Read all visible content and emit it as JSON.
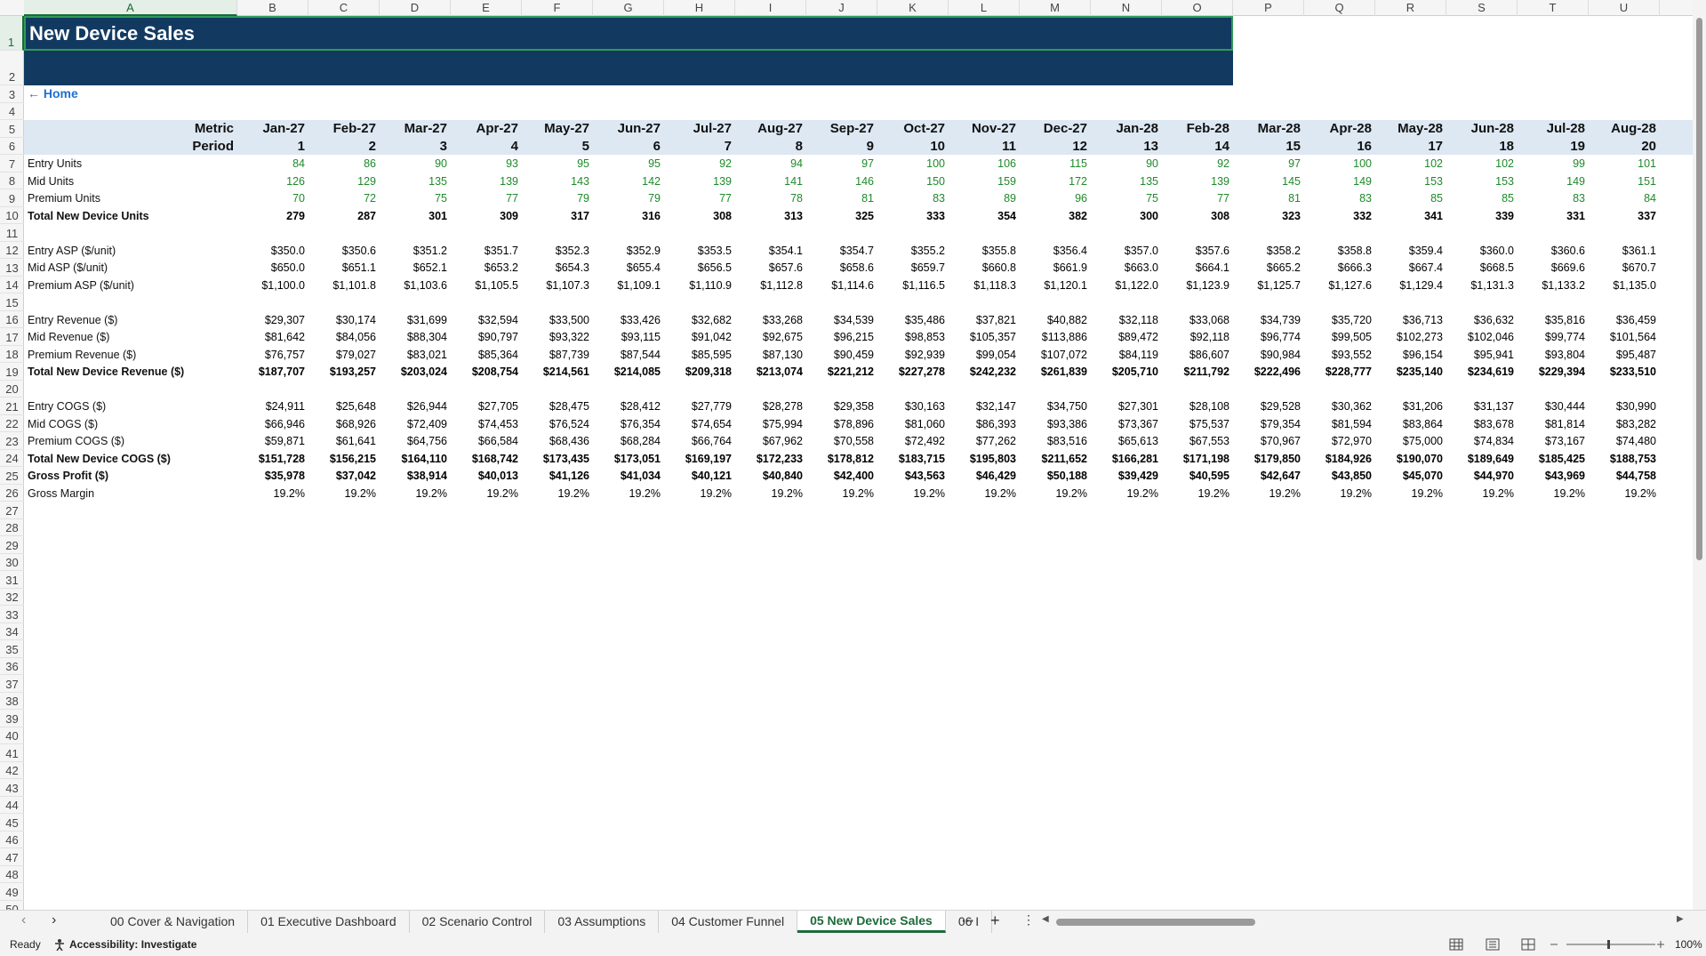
{
  "column_letters": [
    "A",
    "B",
    "C",
    "D",
    "E",
    "F",
    "G",
    "H",
    "I",
    "J",
    "K",
    "L",
    "M",
    "N",
    "O",
    "P",
    "Q",
    "R",
    "S",
    "T",
    "U"
  ],
  "row_numbers": [
    1,
    2,
    3,
    4,
    5,
    6,
    7,
    8,
    9,
    10,
    11,
    12,
    13,
    14,
    15,
    16,
    17,
    18,
    19,
    20,
    21,
    22,
    23,
    24,
    25,
    26,
    27,
    28,
    29,
    30,
    31,
    32,
    33,
    34,
    35,
    36,
    37,
    38,
    39,
    40,
    41,
    42,
    43,
    44,
    45,
    46,
    47,
    48,
    49,
    50
  ],
  "title": "New Device Sales",
  "title_fill": "#123a61",
  "home_link": "← Home",
  "header": {
    "metric_label": "Metric",
    "period_label": "Period",
    "months": [
      "Jan-27",
      "Feb-27",
      "Mar-27",
      "Apr-27",
      "May-27",
      "Jun-27",
      "Jul-27",
      "Aug-27",
      "Sep-27",
      "Oct-27",
      "Nov-27",
      "Dec-27",
      "Jan-28",
      "Feb-28",
      "Mar-28",
      "Apr-28",
      "May-28",
      "Jun-28",
      "Jul-28",
      "Aug-28"
    ],
    "periods": [
      1,
      2,
      3,
      4,
      5,
      6,
      7,
      8,
      9,
      10,
      11,
      12,
      13,
      14,
      15,
      16,
      17,
      18,
      19,
      20
    ],
    "fill": "#dde8f3"
  },
  "rows": [
    {
      "label": "Entry Units",
      "bold": false,
      "color": "#1e8a2a",
      "values": [
        "84",
        "86",
        "90",
        "93",
        "95",
        "95",
        "92",
        "94",
        "97",
        "100",
        "106",
        "115",
        "90",
        "92",
        "97",
        "100",
        "102",
        "102",
        "99",
        "101"
      ]
    },
    {
      "label": "Mid Units",
      "bold": false,
      "color": "#1e8a2a",
      "values": [
        "126",
        "129",
        "135",
        "139",
        "143",
        "142",
        "139",
        "141",
        "146",
        "150",
        "159",
        "172",
        "135",
        "139",
        "145",
        "149",
        "153",
        "153",
        "149",
        "151"
      ]
    },
    {
      "label": "Premium Units",
      "bold": false,
      "color": "#1e8a2a",
      "values": [
        "70",
        "72",
        "75",
        "77",
        "79",
        "79",
        "77",
        "78",
        "81",
        "83",
        "89",
        "96",
        "75",
        "77",
        "81",
        "83",
        "85",
        "85",
        "83",
        "84"
      ]
    },
    {
      "label": "Total New Device Units",
      "bold": true,
      "color": "#000000",
      "values": [
        "279",
        "287",
        "301",
        "309",
        "317",
        "316",
        "308",
        "313",
        "325",
        "333",
        "354",
        "382",
        "300",
        "308",
        "323",
        "332",
        "341",
        "339",
        "331",
        "337"
      ]
    },
    {
      "label": "Entry ASP ($/unit)",
      "bold": false,
      "color": "#000000",
      "values": [
        "$350.0",
        "$350.6",
        "$351.2",
        "$351.7",
        "$352.3",
        "$352.9",
        "$353.5",
        "$354.1",
        "$354.7",
        "$355.2",
        "$355.8",
        "$356.4",
        "$357.0",
        "$357.6",
        "$358.2",
        "$358.8",
        "$359.4",
        "$360.0",
        "$360.6",
        "$361.1"
      ]
    },
    {
      "label": "Mid ASP ($/unit)",
      "bold": false,
      "color": "#000000",
      "values": [
        "$650.0",
        "$651.1",
        "$652.1",
        "$653.2",
        "$654.3",
        "$655.4",
        "$656.5",
        "$657.6",
        "$658.6",
        "$659.7",
        "$660.8",
        "$661.9",
        "$663.0",
        "$664.1",
        "$665.2",
        "$666.3",
        "$667.4",
        "$668.5",
        "$669.6",
        "$670.7"
      ]
    },
    {
      "label": "Premium ASP ($/unit)",
      "bold": false,
      "color": "#000000",
      "values": [
        "$1,100.0",
        "$1,101.8",
        "$1,103.6",
        "$1,105.5",
        "$1,107.3",
        "$1,109.1",
        "$1,110.9",
        "$1,112.8",
        "$1,114.6",
        "$1,116.5",
        "$1,118.3",
        "$1,120.1",
        "$1,122.0",
        "$1,123.9",
        "$1,125.7",
        "$1,127.6",
        "$1,129.4",
        "$1,131.3",
        "$1,133.2",
        "$1,135.0"
      ]
    },
    {
      "label": "Entry Revenue ($)",
      "bold": false,
      "color": "#000000",
      "values": [
        "$29,307",
        "$30,174",
        "$31,699",
        "$32,594",
        "$33,500",
        "$33,426",
        "$32,682",
        "$33,268",
        "$34,539",
        "$35,486",
        "$37,821",
        "$40,882",
        "$32,118",
        "$33,068",
        "$34,739",
        "$35,720",
        "$36,713",
        "$36,632",
        "$35,816",
        "$36,459"
      ]
    },
    {
      "label": "Mid Revenue ($)",
      "bold": false,
      "color": "#000000",
      "values": [
        "$81,642",
        "$84,056",
        "$88,304",
        "$90,797",
        "$93,322",
        "$93,115",
        "$91,042",
        "$92,675",
        "$96,215",
        "$98,853",
        "$105,357",
        "$113,886",
        "$89,472",
        "$92,118",
        "$96,774",
        "$99,505",
        "$102,273",
        "$102,046",
        "$99,774",
        "$101,564"
      ]
    },
    {
      "label": "Premium Revenue ($)",
      "bold": false,
      "color": "#000000",
      "values": [
        "$76,757",
        "$79,027",
        "$83,021",
        "$85,364",
        "$87,739",
        "$87,544",
        "$85,595",
        "$87,130",
        "$90,459",
        "$92,939",
        "$99,054",
        "$107,072",
        "$84,119",
        "$86,607",
        "$90,984",
        "$93,552",
        "$96,154",
        "$95,941",
        "$93,804",
        "$95,487"
      ]
    },
    {
      "label": "Total New Device Revenue ($)",
      "bold": true,
      "color": "#000000",
      "values": [
        "$187,707",
        "$193,257",
        "$203,024",
        "$208,754",
        "$214,561",
        "$214,085",
        "$209,318",
        "$213,074",
        "$221,212",
        "$227,278",
        "$242,232",
        "$261,839",
        "$205,710",
        "$211,792",
        "$222,496",
        "$228,777",
        "$235,140",
        "$234,619",
        "$229,394",
        "$233,510"
      ]
    },
    {
      "label": "Entry COGS ($)",
      "bold": false,
      "color": "#000000",
      "values": [
        "$24,911",
        "$25,648",
        "$26,944",
        "$27,705",
        "$28,475",
        "$28,412",
        "$27,779",
        "$28,278",
        "$29,358",
        "$30,163",
        "$32,147",
        "$34,750",
        "$27,301",
        "$28,108",
        "$29,528",
        "$30,362",
        "$31,206",
        "$31,137",
        "$30,444",
        "$30,990"
      ]
    },
    {
      "label": "Mid COGS ($)",
      "bold": false,
      "color": "#000000",
      "values": [
        "$66,946",
        "$68,926",
        "$72,409",
        "$74,453",
        "$76,524",
        "$76,354",
        "$74,654",
        "$75,994",
        "$78,896",
        "$81,060",
        "$86,393",
        "$93,386",
        "$73,367",
        "$75,537",
        "$79,354",
        "$81,594",
        "$83,864",
        "$83,678",
        "$81,814",
        "$83,282"
      ]
    },
    {
      "label": "Premium COGS ($)",
      "bold": false,
      "color": "#000000",
      "values": [
        "$59,871",
        "$61,641",
        "$64,756",
        "$66,584",
        "$68,436",
        "$68,284",
        "$66,764",
        "$67,962",
        "$70,558",
        "$72,492",
        "$77,262",
        "$83,516",
        "$65,613",
        "$67,553",
        "$70,967",
        "$72,970",
        "$75,000",
        "$74,834",
        "$73,167",
        "$74,480"
      ]
    },
    {
      "label": "Total New Device COGS ($)",
      "bold": true,
      "color": "#000000",
      "values": [
        "$151,728",
        "$156,215",
        "$164,110",
        "$168,742",
        "$173,435",
        "$173,051",
        "$169,197",
        "$172,233",
        "$178,812",
        "$183,715",
        "$195,803",
        "$211,652",
        "$166,281",
        "$171,198",
        "$179,850",
        "$184,926",
        "$190,070",
        "$189,649",
        "$185,425",
        "$188,753"
      ]
    },
    {
      "label": "Gross Profit ($)",
      "bold": true,
      "color": "#000000",
      "values": [
        "$35,978",
        "$37,042",
        "$38,914",
        "$40,013",
        "$41,126",
        "$41,034",
        "$40,121",
        "$40,840",
        "$42,400",
        "$43,563",
        "$46,429",
        "$50,188",
        "$39,429",
        "$40,595",
        "$42,647",
        "$43,850",
        "$45,070",
        "$44,970",
        "$43,969",
        "$44,758"
      ]
    },
    {
      "label": "Gross Margin",
      "bold": false,
      "color": "#000000",
      "values": [
        "19.2%",
        "19.2%",
        "19.2%",
        "19.2%",
        "19.2%",
        "19.2%",
        "19.2%",
        "19.2%",
        "19.2%",
        "19.2%",
        "19.2%",
        "19.2%",
        "19.2%",
        "19.2%",
        "19.2%",
        "19.2%",
        "19.2%",
        "19.2%",
        "19.2%",
        "19.2%"
      ]
    }
  ],
  "tabs": [
    "00 Cover & Navigation",
    "01 Executive Dashboard",
    "02 Scenario Control",
    "03 Assumptions",
    "04 Customer Funnel",
    "05 New Device Sales",
    "06 I"
  ],
  "active_tab": 5,
  "status": "Ready",
  "accessibility": "Accessibility: Investigate",
  "zoom": "100%"
}
